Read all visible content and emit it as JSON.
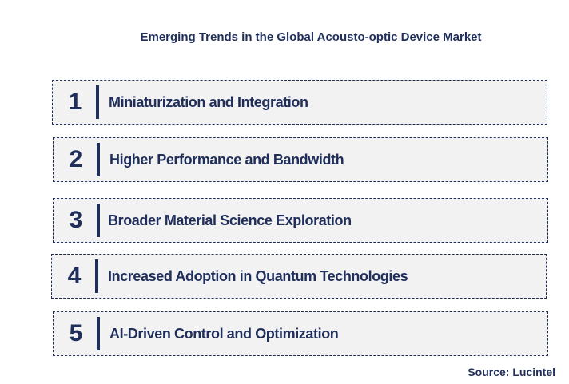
{
  "title": "Emerging Trends in the Global Acousto-optic Device Market",
  "trends": [
    {
      "number": "1",
      "label": "Miniaturization and Integration"
    },
    {
      "number": "2",
      "label": "Higher Performance and Bandwidth"
    },
    {
      "number": "3",
      "label": "Broader Material Science Exploration"
    },
    {
      "number": "4",
      "label": "Increased Adoption in Quantum Technologies"
    },
    {
      "number": "5",
      "label": "AI-Driven Control and Optimization"
    }
  ],
  "source": "Source: Lucintel",
  "colors": {
    "text": "#1f2e5a",
    "box_fill": "#f2f2f2",
    "box_border": "#1f2e5a"
  }
}
